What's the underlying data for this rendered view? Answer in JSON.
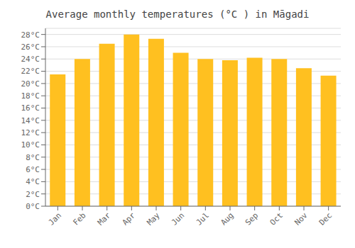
{
  "chart_data": {
    "type": "bar",
    "title": "Average monthly temperatures (°C ) in Māgadi",
    "categories": [
      "Jan",
      "Feb",
      "Mar",
      "Apr",
      "May",
      "Jun",
      "Jul",
      "Aug",
      "Sep",
      "Oct",
      "Nov",
      "Dec"
    ],
    "values": [
      21.5,
      24.0,
      26.5,
      28.0,
      27.3,
      25.0,
      24.0,
      23.8,
      24.2,
      24.0,
      22.5,
      21.3
    ],
    "color": "#FFC020",
    "ylim": [
      0,
      29
    ],
    "yticks": [
      {
        "value": 0,
        "label": "0°C"
      },
      {
        "value": 2,
        "label": "2°C"
      },
      {
        "value": 4,
        "label": "4°C"
      },
      {
        "value": 6,
        "label": "6°C"
      },
      {
        "value": 8,
        "label": "8°C"
      },
      {
        "value": 10,
        "label": "10°C"
      },
      {
        "value": 12,
        "label": "12°C"
      },
      {
        "value": 14,
        "label": "14°C"
      },
      {
        "value": 16,
        "label": "16°C"
      },
      {
        "value": 18,
        "label": "18°C"
      },
      {
        "value": 20,
        "label": "20°C"
      },
      {
        "value": 22,
        "label": "22°C"
      },
      {
        "value": 24,
        "label": "24°C"
      },
      {
        "value": 26,
        "label": "26°C"
      },
      {
        "value": 28,
        "label": "28°C"
      }
    ],
    "grid": true
  }
}
